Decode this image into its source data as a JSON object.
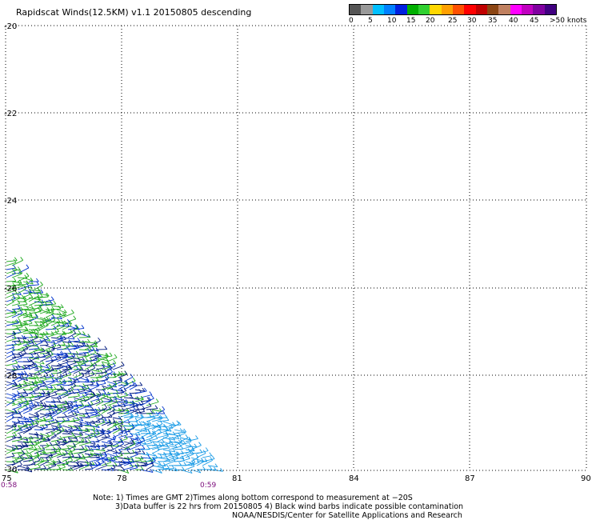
{
  "title": "Rapidscat Winds(12.5KM) v1.1 20150805 descending",
  "colorbar": {
    "colors": [
      "#555555",
      "#999999",
      "#00bfff",
      "#0080ff",
      "#0020e0",
      "#00b000",
      "#30d030",
      "#ffd700",
      "#ffa000",
      "#ff5000",
      "#ff0000",
      "#c00000",
      "#8b4513",
      "#c08060",
      "#ff00ff",
      "#c000c0",
      "#8000a0",
      "#400080"
    ],
    "labels": [
      "0",
      "5",
      "10",
      "15",
      "20",
      "25",
      "30",
      "35",
      "40",
      "45",
      ">50 knots"
    ]
  },
  "axes": {
    "lat_labels": [
      "-20",
      "-22",
      "-24",
      "-26",
      "-28",
      "-30"
    ],
    "lon_labels": [
      "75",
      "78",
      "81",
      "84",
      "87",
      "90"
    ]
  },
  "times": {
    "left": "0:58",
    "right": "0:59"
  },
  "notes": {
    "line1": "Note: 1) Times are GMT 2)Times along bottom correspond to measurement at −20S",
    "line2": "3)Data buffer is 22 hrs from 20150805 4) Black wind barbs indicate possible contamination",
    "line3": "NOAA/NESDIS/Center for Satellite Applications and Research"
  },
  "barb_colors": {
    "green": "#22aa22",
    "blue": "#0033cc",
    "lightblue": "#1a9be6",
    "navy": "#001a80"
  }
}
